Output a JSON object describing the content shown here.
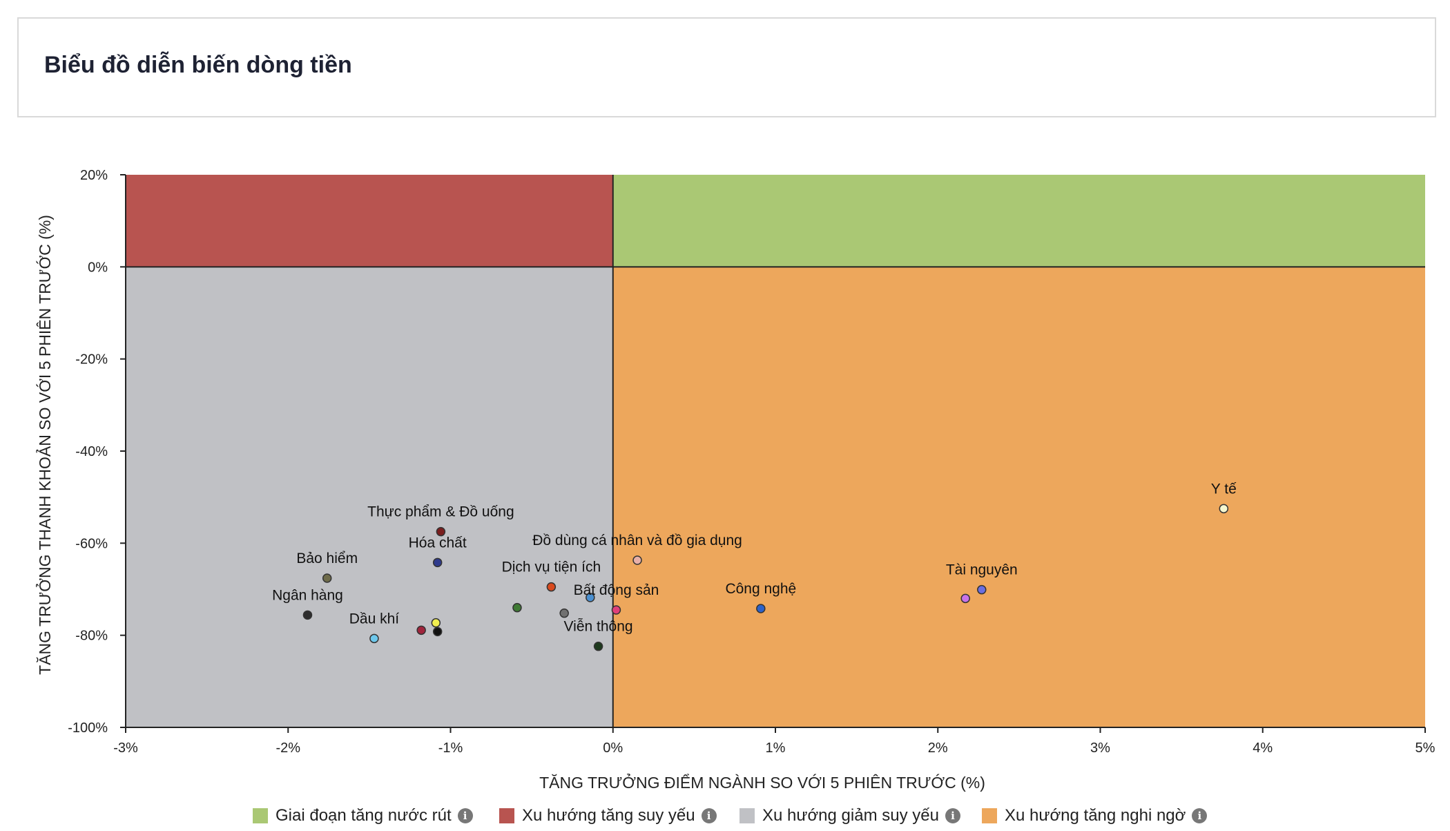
{
  "header": {
    "title": "Biểu đồ diễn biến dòng tiền"
  },
  "legend": [
    {
      "label": "Giai đoạn tăng nước rút",
      "color": "#aac874",
      "icon": "info-icon"
    },
    {
      "label": "Xu hướng tăng suy yếu",
      "color": "#b85450",
      "icon": "info-icon"
    },
    {
      "label": "Xu hướng giảm suy yếu",
      "color": "#c0c1c5",
      "icon": "info-icon"
    },
    {
      "label": "Xu hướng tăng nghi ngờ",
      "color": "#eda75c",
      "icon": "info-icon"
    }
  ],
  "chart_data": {
    "type": "scatter",
    "xlabel": "TĂNG TRƯỞNG ĐIỂM NGÀNH SO VỚI 5 PHIÊN TRƯỚC (%)",
    "ylabel": "TĂNG TRƯỞNG THANH KHOẢN SO VỚI 5 PHIÊN TRƯỚC (%)",
    "xlim": [
      -3,
      5
    ],
    "ylim": [
      -100,
      20
    ],
    "x_ticks": [
      {
        "value": -3,
        "label": "-3%"
      },
      {
        "value": -2,
        "label": "-2%"
      },
      {
        "value": -1,
        "label": "-1%"
      },
      {
        "value": 0,
        "label": "0%"
      },
      {
        "value": 1,
        "label": "1%"
      },
      {
        "value": 2,
        "label": "2%"
      },
      {
        "value": 3,
        "label": "3%"
      },
      {
        "value": 4,
        "label": "4%"
      },
      {
        "value": 5,
        "label": "5%"
      }
    ],
    "y_ticks": [
      {
        "value": 20,
        "label": "20%"
      },
      {
        "value": 0,
        "label": "0%"
      },
      {
        "value": -20,
        "label": "-20%"
      },
      {
        "value": -40,
        "label": "-40%"
      },
      {
        "value": -60,
        "label": "-60%"
      },
      {
        "value": -80,
        "label": "-80%"
      },
      {
        "value": -100,
        "label": "-100%"
      }
    ],
    "quadrants": [
      {
        "name": "Giai đoạn tăng nước rút",
        "x": [
          0,
          5
        ],
        "y": [
          0,
          20
        ],
        "color": "#aac874"
      },
      {
        "name": "Xu hướng tăng suy yếu",
        "x": [
          -3,
          0
        ],
        "y": [
          0,
          20
        ],
        "color": "#b85450"
      },
      {
        "name": "Xu hướng giảm suy yếu",
        "x": [
          -3,
          0
        ],
        "y": [
          -100,
          0
        ],
        "color": "#c0c1c5"
      },
      {
        "name": "Xu hướng tăng nghi ngờ",
        "x": [
          0,
          5
        ],
        "y": [
          -100,
          0
        ],
        "color": "#eda75c"
      }
    ],
    "points": [
      {
        "label": "Y tế",
        "x": 3.76,
        "y": -52.5,
        "color": "#f5f7d0"
      },
      {
        "label": "Thực phẩm & Đồ uống",
        "x": -1.06,
        "y": -57.5,
        "color": "#7a1e1e"
      },
      {
        "label": "Đồ dùng cá nhân và đồ gia dụng",
        "x": 0.15,
        "y": -63.7,
        "color": "#e8b0a8"
      },
      {
        "label": "Hóa chất",
        "x": -1.08,
        "y": -64.2,
        "color": "#2e3a8c"
      },
      {
        "label": "Bảo hiểm",
        "x": -1.76,
        "y": -67.6,
        "color": "#6e6b4a"
      },
      {
        "label": "Dịch vụ tiện ích",
        "x": -0.38,
        "y": -69.5,
        "color": "#d94a1e"
      },
      {
        "label": "Tài nguyên",
        "x": 2.27,
        "y": -70.1,
        "color": "#6a6ee0"
      },
      {
        "label": "",
        "x": 2.17,
        "y": -72.0,
        "color": "#c873e8"
      },
      {
        "label": "",
        "x": -0.14,
        "y": -71.8,
        "color": "#4a8fd0"
      },
      {
        "label": "Bất động sản",
        "x": 0.02,
        "y": -74.5,
        "color": "#e0407a"
      },
      {
        "label": "Công nghệ",
        "x": 0.91,
        "y": -74.2,
        "color": "#2d62c8"
      },
      {
        "label": "",
        "x": -0.59,
        "y": -74.0,
        "color": "#3f7a34"
      },
      {
        "label": "",
        "x": -0.3,
        "y": -75.2,
        "color": "#707070"
      },
      {
        "label": "Ngân hàng",
        "x": -1.88,
        "y": -75.6,
        "color": "#2e2e2e"
      },
      {
        "label": "Dầu khí",
        "x": -1.47,
        "y": -80.7,
        "color": "#6ec8ec"
      },
      {
        "label": "",
        "x": -1.09,
        "y": -77.3,
        "color": "#f2ef50"
      },
      {
        "label": "",
        "x": -1.18,
        "y": -78.9,
        "color": "#a0243c"
      },
      {
        "label": "",
        "x": -1.08,
        "y": -79.2,
        "color": "#111111"
      },
      {
        "label": "Viễn thông",
        "x": -0.09,
        "y": -82.4,
        "color": "#1e3a1e"
      }
    ]
  }
}
